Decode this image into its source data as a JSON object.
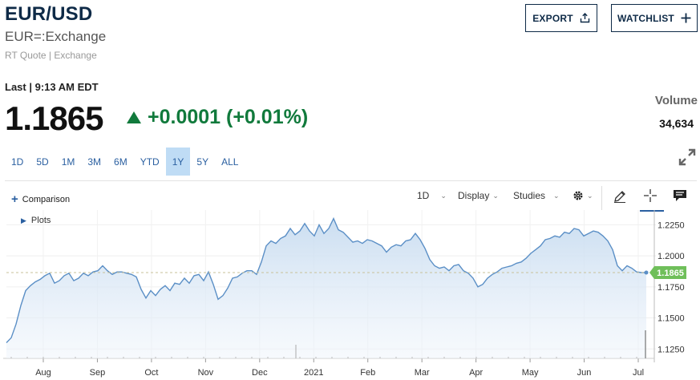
{
  "header": {
    "title": "EUR/USD",
    "subtitle": "EUR=:Exchange",
    "meta": "RT Quote | Exchange",
    "export_label": "EXPORT",
    "watchlist_label": "WATCHLIST"
  },
  "quote": {
    "last_label": "Last | 9:13 AM EDT",
    "price": "1.1865",
    "change": "+0.0001 (+0.01%)",
    "change_color": "#117a3c",
    "volume_label": "Volume",
    "volume_value": "34,634"
  },
  "ranges": [
    {
      "label": "1D"
    },
    {
      "label": "5D"
    },
    {
      "label": "1M"
    },
    {
      "label": "3M"
    },
    {
      "label": "6M"
    },
    {
      "label": "YTD"
    },
    {
      "label": "1Y",
      "active": true
    },
    {
      "label": "5Y"
    },
    {
      "label": "ALL"
    }
  ],
  "toolbar": {
    "comparison_label": "Comparison",
    "interval_label": "1D",
    "display_label": "Display",
    "studies_label": "Studies",
    "plots_label": "Plots"
  },
  "colors": {
    "accent": "#2a5fa0",
    "line": "#5b8fc6",
    "fill": "#c8dcf0",
    "marker": "#6fbf5a"
  },
  "chart_data": {
    "type": "area",
    "x_ticks": [
      "Aug",
      "Sep",
      "Oct",
      "Nov",
      "Dec",
      "2021",
      "Feb",
      "Mar",
      "Apr",
      "May",
      "Jun",
      "Jul"
    ],
    "y_ticks": [
      "1.2250",
      "1.2000",
      "1.1750",
      "1.1500",
      "1.1250"
    ],
    "ylim": [
      1.12,
      1.233
    ],
    "last_value": 1.1865,
    "last_label": "1.1865",
    "grid": true,
    "values": [
      1.13,
      1.134,
      1.145,
      1.16,
      1.172,
      1.176,
      1.179,
      1.181,
      1.184,
      1.186,
      1.178,
      1.18,
      1.184,
      1.186,
      1.18,
      1.182,
      1.186,
      1.184,
      1.187,
      1.188,
      1.192,
      1.188,
      1.185,
      1.187,
      1.187,
      1.186,
      1.185,
      1.183,
      1.173,
      1.166,
      1.172,
      1.168,
      1.173,
      1.176,
      1.172,
      1.178,
      1.177,
      1.182,
      1.178,
      1.184,
      1.185,
      1.18,
      1.187,
      1.177,
      1.165,
      1.168,
      1.174,
      1.182,
      1.183,
      1.186,
      1.188,
      1.188,
      1.185,
      1.195,
      1.208,
      1.212,
      1.21,
      1.214,
      1.216,
      1.222,
      1.217,
      1.22,
      1.226,
      1.22,
      1.216,
      1.225,
      1.218,
      1.222,
      1.23,
      1.221,
      1.219,
      1.215,
      1.211,
      1.212,
      1.21,
      1.213,
      1.212,
      1.21,
      1.208,
      1.203,
      1.207,
      1.209,
      1.208,
      1.212,
      1.213,
      1.218,
      1.213,
      1.206,
      1.197,
      1.192,
      1.19,
      1.191,
      1.188,
      1.192,
      1.193,
      1.188,
      1.186,
      1.182,
      1.175,
      1.177,
      1.182,
      1.185,
      1.187,
      1.19,
      1.191,
      1.192,
      1.194,
      1.195,
      1.198,
      1.202,
      1.205,
      1.208,
      1.213,
      1.214,
      1.216,
      1.215,
      1.219,
      1.218,
      1.222,
      1.221,
      1.216,
      1.218,
      1.22,
      1.219,
      1.216,
      1.212,
      1.205,
      1.192,
      1.188,
      1.192,
      1.19,
      1.187,
      1.1865,
      1.1865
    ]
  }
}
